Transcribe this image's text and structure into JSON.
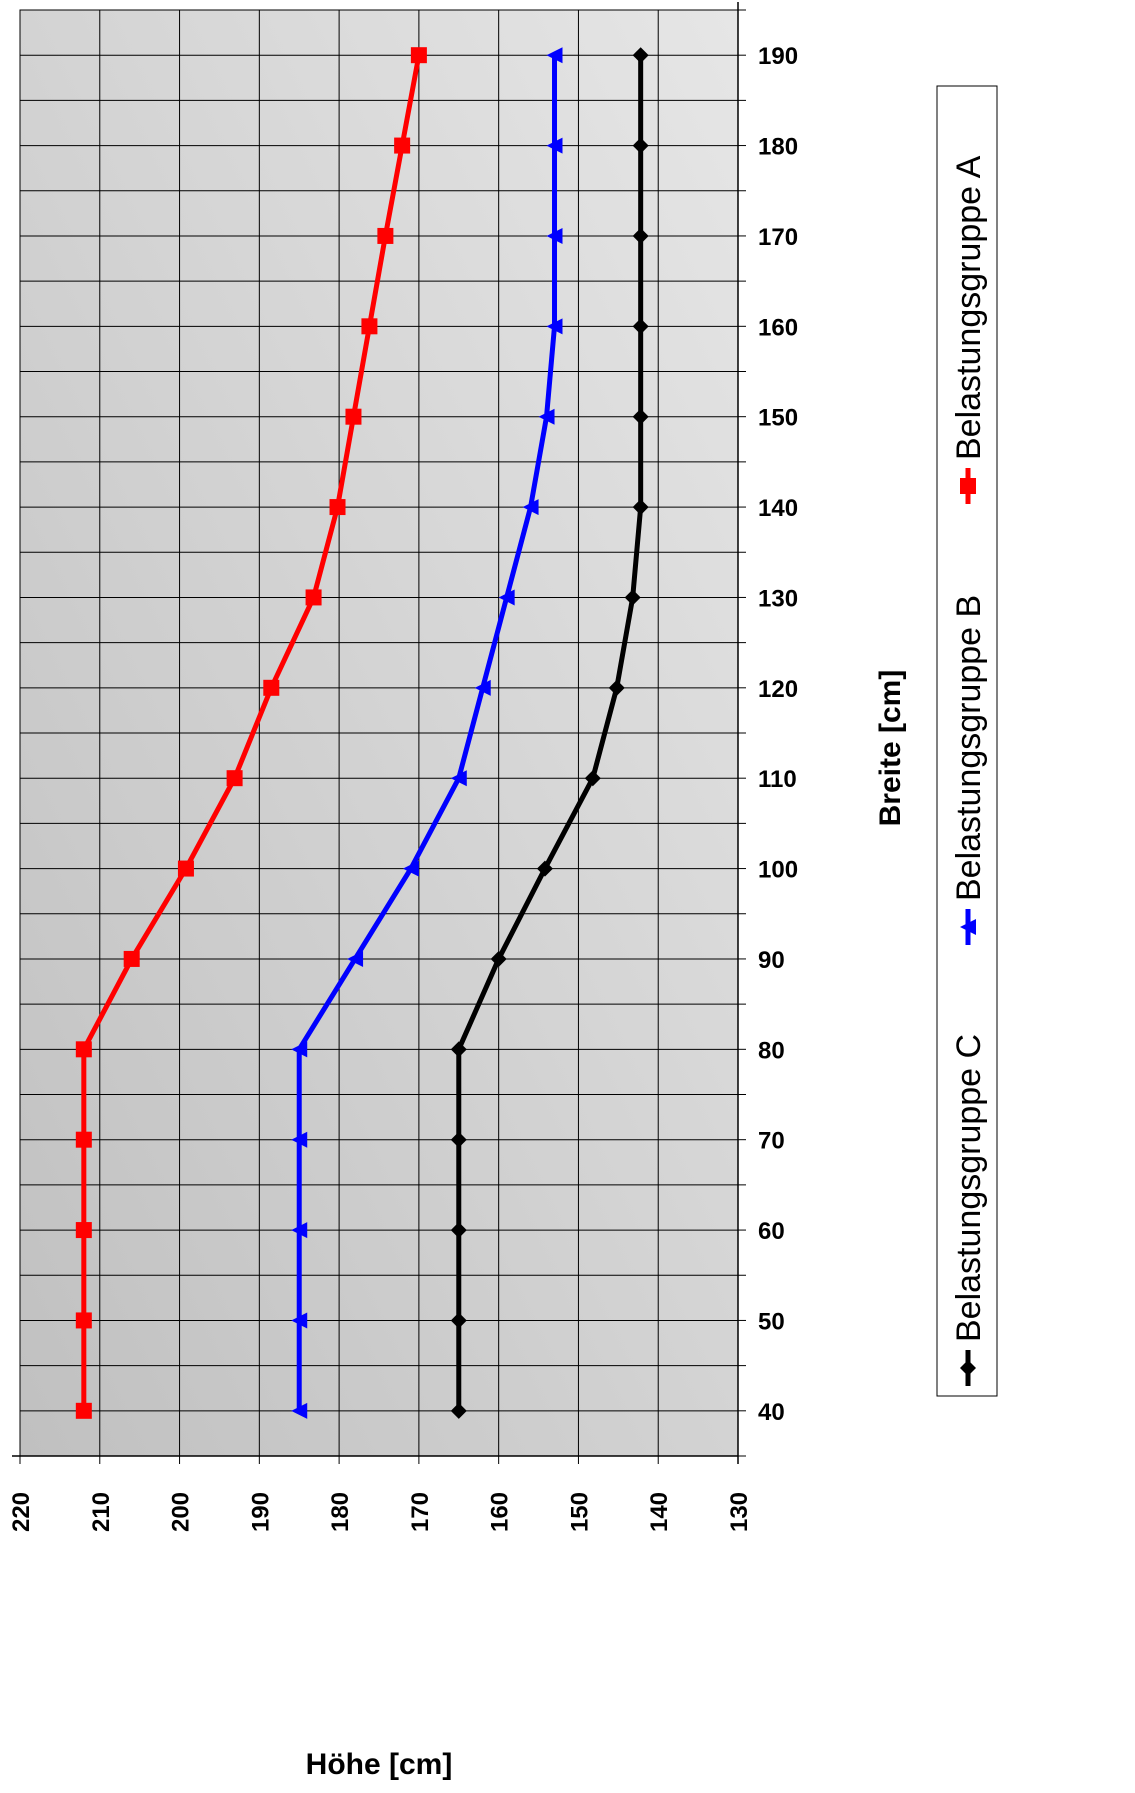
{
  "chart_data": {
    "type": "line",
    "xlabel": "Höhe [cm]",
    "ylabel": "Breite [cm]",
    "xlim": [
      220,
      130
    ],
    "ylim": [
      35,
      195
    ],
    "x_ticks": [
      220,
      210,
      200,
      190,
      180,
      170,
      160,
      150,
      140,
      130
    ],
    "y_ticks": [
      40,
      50,
      60,
      70,
      80,
      90,
      100,
      110,
      120,
      130,
      140,
      150,
      160,
      170,
      180,
      190
    ],
    "grid": true,
    "legend_position": "right",
    "breite": [
      40,
      50,
      60,
      70,
      80,
      90,
      100,
      110,
      120,
      130,
      140,
      150,
      160,
      170,
      180,
      190
    ],
    "series": [
      {
        "name": "Belastungsgruppe A",
        "color": "#ff0000",
        "marker": "square",
        "hoehe": [
          212,
          212,
          212,
          212,
          212,
          206,
          199.2,
          193.1,
          188.5,
          183.2,
          180.2,
          178.2,
          176.2,
          174.2,
          172.1,
          170
        ]
      },
      {
        "name": "Belastungsgruppe B",
        "color": "#0000ff",
        "marker": "triangle",
        "hoehe": [
          185,
          185,
          185,
          185,
          185,
          178,
          171,
          165,
          162,
          159,
          156,
          154,
          153,
          153,
          153,
          153
        ]
      },
      {
        "name": "Belastungsgruppe C",
        "color": "#000000",
        "marker": "diamond",
        "hoehe": [
          165,
          165,
          165,
          165,
          165,
          160,
          154.2,
          148.2,
          145.2,
          143.2,
          142.2,
          142.2,
          142.2,
          142.2,
          142.2,
          142.2
        ]
      }
    ]
  }
}
